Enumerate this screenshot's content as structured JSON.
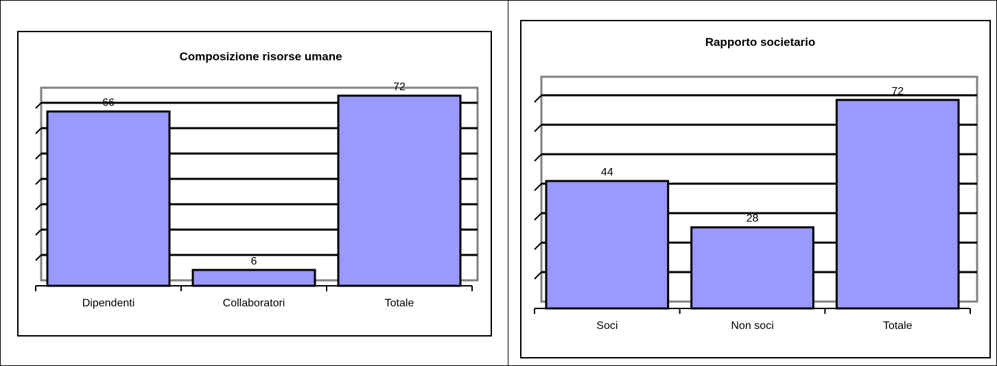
{
  "chart_data": [
    {
      "type": "bar",
      "title": "Composizione risorse umane",
      "categories": [
        "Dipendenti",
        "Collaboratori",
        "Totale"
      ],
      "values": [
        66,
        6,
        72
      ],
      "data_labels": [
        "66",
        "6",
        "72"
      ],
      "ylim": [
        0,
        75
      ],
      "grid": true,
      "bar_color": "#9999ff"
    },
    {
      "type": "bar",
      "title": "Rapporto societario",
      "categories": [
        "Soci",
        "Non soci",
        "Totale"
      ],
      "values": [
        44,
        28,
        72
      ],
      "data_labels": [
        "44",
        "28",
        "72"
      ],
      "ylim": [
        0,
        80
      ],
      "grid": true,
      "bar_color": "#9999ff"
    }
  ]
}
